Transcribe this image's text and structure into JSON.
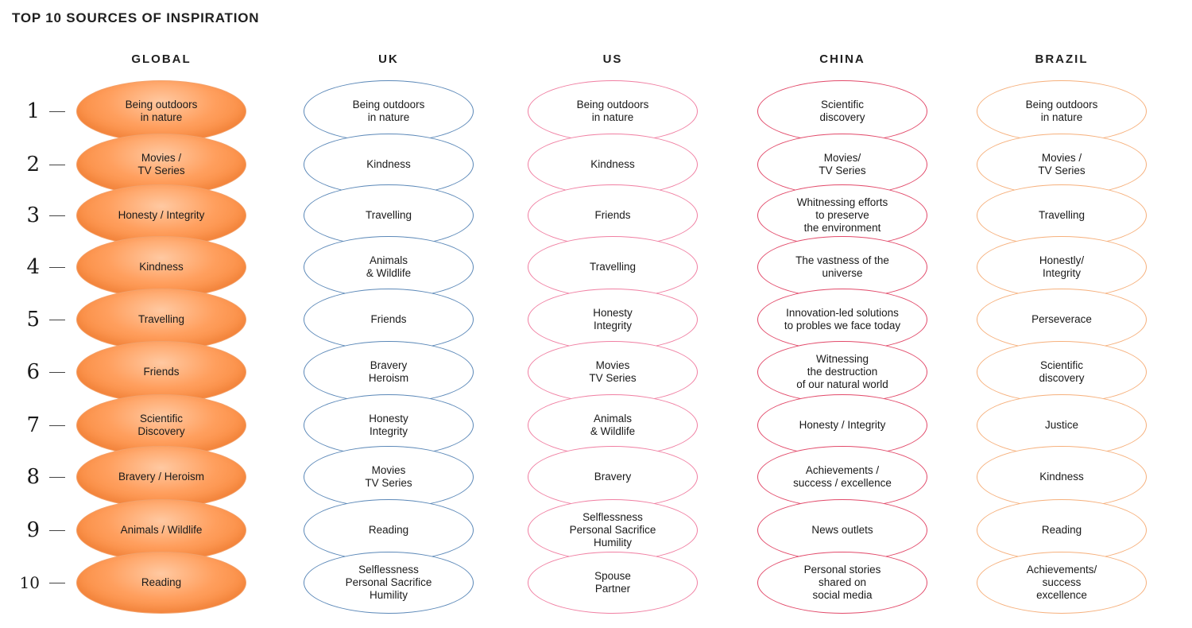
{
  "title": "TOP 10 SOURCES OF INSPIRATION",
  "ranks": [
    "1",
    "2",
    "3",
    "4",
    "5",
    "6",
    "7",
    "8",
    "9",
    "10"
  ],
  "columns": [
    {
      "key": "global",
      "header": "GLOBAL",
      "items": [
        "Being outdoors\nin nature",
        "Movies /\nTV Series",
        "Honesty / Integrity",
        "Kindness",
        "Travelling",
        "Friends",
        "Scientific\nDiscovery",
        "Bravery / Heroism",
        "Animals / Wildlife",
        "Reading"
      ]
    },
    {
      "key": "uk",
      "header": "UK",
      "items": [
        "Being outdoors\nin nature",
        "Kindness",
        "Travelling",
        "Animals\n& Wildlife",
        "Friends",
        "Bravery\nHeroism",
        "Honesty\nIntegrity",
        "Movies\nTV Series",
        "Reading",
        "Selflessness\nPersonal Sacrifice\nHumility"
      ]
    },
    {
      "key": "us",
      "header": "US",
      "items": [
        "Being outdoors\nin nature",
        "Kindness",
        "Friends",
        "Travelling",
        "Honesty\nIntegrity",
        "Movies\nTV Series",
        "Animals\n& Wildlife",
        "Bravery",
        "Selflessness\nPersonal Sacrifice\nHumility",
        "Spouse\nPartner"
      ]
    },
    {
      "key": "china",
      "header": "CHINA",
      "items": [
        "Scientific\ndiscovery",
        "Movies/\nTV Series",
        "Whitnessing efforts\nto preserve\nthe environment",
        "The vastness of the\nuniverse",
        "Innovation-led solutions\nto probles we face today",
        "Witnessing\nthe destruction\nof our natural world",
        "Honesty / Integrity",
        "Achievements /\nsuccess / excellence",
        "News outlets",
        "Personal stories\nshared on\nsocial media"
      ]
    },
    {
      "key": "brazil",
      "header": "BRAZIL",
      "items": [
        "Being outdoors\nin nature",
        "Movies /\nTV Series",
        "Travelling",
        "Honestly/\nIntegrity",
        "Perseverace",
        "Scientific\ndiscovery",
        "Justice",
        "Kindness",
        "Reading",
        "Achievements/\nsuccess\nexcellence"
      ]
    }
  ],
  "colors": {
    "global_fill": "#ff9f5e",
    "uk_outline": "#5b88b8",
    "us_outline": "#f07fa2",
    "china_outline": "#e24a6a",
    "brazil_outline": "#f6b07c"
  }
}
